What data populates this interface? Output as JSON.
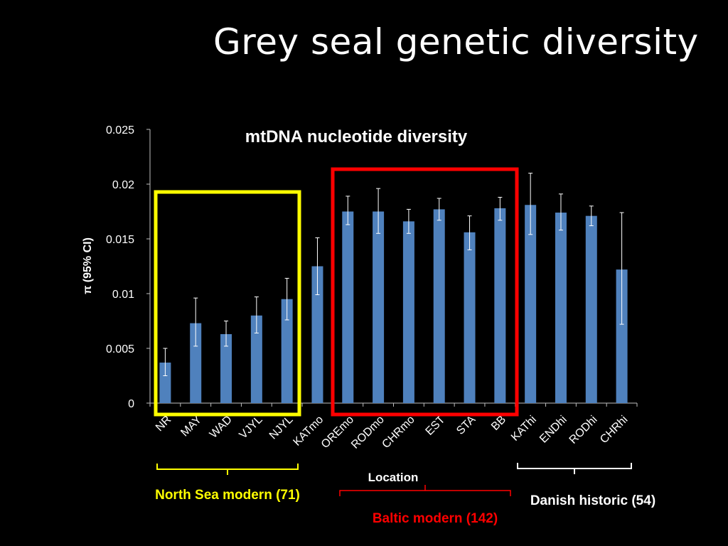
{
  "slide": {
    "title": "Grey seal genetic diversity"
  },
  "chart_data": {
    "type": "bar",
    "title": "mtDNA nucleotide diversity",
    "xlabel": "Location",
    "ylabel": "π (95% CI)",
    "ylim": [
      0,
      0.025
    ],
    "yticks": [
      "0",
      "0.005",
      "0.01",
      "0.015",
      "0.02",
      "0.025"
    ],
    "ytick_values": [
      0,
      0.005,
      0.01,
      0.015,
      0.02,
      0.025
    ],
    "categories": [
      "NR",
      "MAY",
      "WAD",
      "VJYL",
      "NJYL",
      "KATmo",
      "OREmo",
      "RODmo",
      "CHRmo",
      "EST",
      "STA",
      "BB",
      "KAThi",
      "ENDhi",
      "RODhi",
      "CHRhi"
    ],
    "series": [
      {
        "values": [
          0.0037,
          0.0073,
          0.0063,
          0.008,
          0.0095,
          0.0125,
          0.0175,
          0.0175,
          0.0166,
          0.0177,
          0.0156,
          0.0178,
          0.0181,
          0.0174,
          0.0171,
          0.0122
        ],
        "ci_low": [
          0.0025,
          0.0052,
          0.0052,
          0.0064,
          0.0076,
          0.0099,
          0.0163,
          0.0155,
          0.0155,
          0.0167,
          0.014,
          0.0167,
          0.0154,
          0.0158,
          0.0162,
          0.0072
        ],
        "ci_high": [
          0.005,
          0.0096,
          0.0075,
          0.0097,
          0.0114,
          0.0151,
          0.0189,
          0.0196,
          0.0177,
          0.0187,
          0.0171,
          0.0188,
          0.021,
          0.0191,
          0.018,
          0.0174
        ]
      }
    ],
    "grid": false,
    "bar_color": "#4F81BD",
    "groups": [
      {
        "label": "North Sea modern (71)",
        "color": "#FFFF00",
        "categories": [
          "NR",
          "MAY",
          "WAD",
          "VJYL",
          "NJYL"
        ]
      },
      {
        "label": "Baltic modern (142)",
        "color": "#FF0000",
        "categories": [
          "OREmo",
          "RODmo",
          "CHRmo",
          "EST",
          "STA",
          "BB"
        ]
      },
      {
        "label": "Danish historic (54)",
        "color": "#FFFFFF",
        "categories": [
          "KAThi",
          "ENDhi",
          "RODhi",
          "CHRhi"
        ]
      }
    ]
  }
}
